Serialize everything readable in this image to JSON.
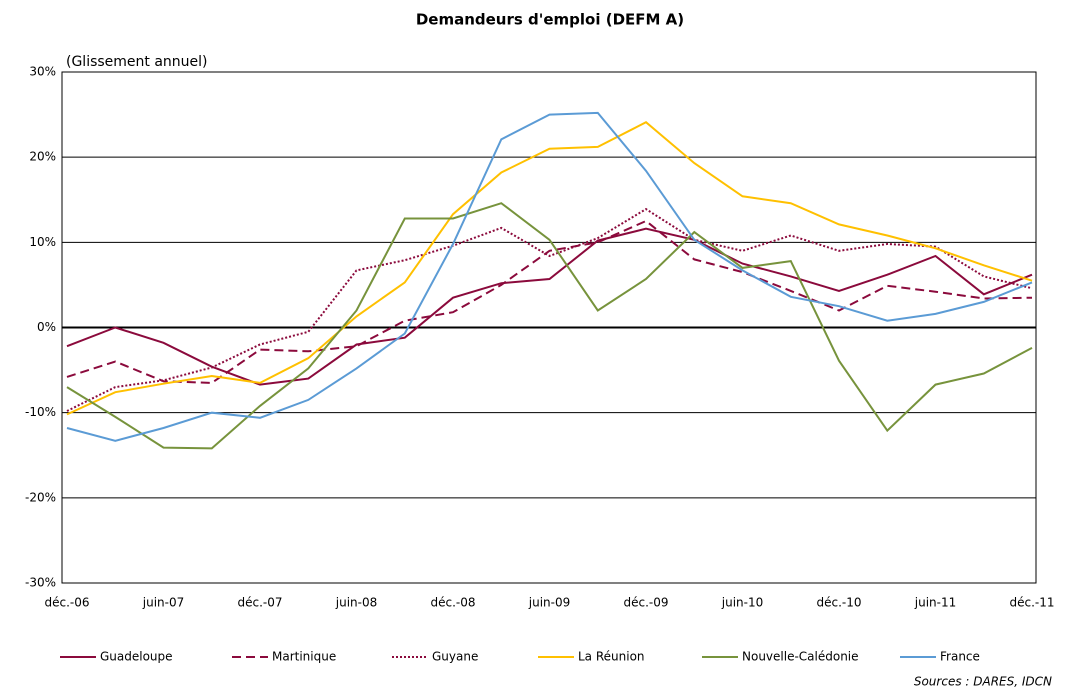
{
  "chart_data": {
    "type": "line",
    "title": "Demandeurs d'emploi (DEFM A)",
    "y_label": "(Glissement annuel)",
    "source": "Sources : DARES, IDCN",
    "categories": [
      "déc.-06",
      null,
      "juin-07",
      null,
      "déc.-07",
      null,
      "juin-08",
      null,
      "déc.-08",
      null,
      "juin-09",
      null,
      "déc.-09",
      null,
      "juin-10",
      null,
      "déc.-10",
      null,
      "juin-11",
      null,
      "déc.-11"
    ],
    "ylim": [
      -30,
      30
    ],
    "yticks": [
      {
        "value": -30,
        "label": "-30%"
      },
      {
        "value": -20,
        "label": "-20%"
      },
      {
        "value": -10,
        "label": "-10%"
      },
      {
        "value": 0,
        "label": "0%"
      },
      {
        "value": 10,
        "label": "10%"
      },
      {
        "value": 20,
        "label": "20%"
      },
      {
        "value": 30,
        "label": "30%"
      }
    ],
    "grid": true,
    "legend": "bottom",
    "series": [
      {
        "name": "Guadeloupe",
        "color": "#8b0a3c",
        "dash": "solid",
        "values": [
          -2.2,
          0,
          -1.8,
          -4.6,
          -6.7,
          -6.0,
          -2.0,
          -1.2,
          3.5,
          5.2,
          5.7,
          10.2,
          11.6,
          10.3,
          7.5,
          6.0,
          4.3,
          6.2,
          8.4,
          3.9,
          6.2
        ]
      },
      {
        "name": "Martinique",
        "color": "#8b0a3c",
        "dash": "dashed",
        "values": [
          -5.8,
          -4.0,
          -6.3,
          -6.5,
          -2.6,
          -2.8,
          -2.2,
          0.8,
          1.8,
          5.0,
          9.0,
          10.0,
          12.5,
          8.0,
          6.5,
          4.3,
          2.0,
          4.9,
          4.2,
          3.4,
          3.5
        ]
      },
      {
        "name": "Guyane",
        "color": "#8b0a3c",
        "dash": "dotted",
        "values": [
          -9.8,
          -7.0,
          -6.2,
          -4.7,
          -2.0,
          -0.5,
          6.7,
          7.9,
          9.6,
          11.7,
          8.4,
          10.5,
          13.9,
          10.3,
          9.0,
          10.8,
          9.0,
          9.8,
          9.5,
          6.0,
          4.6
        ]
      },
      {
        "name": "La Réunion",
        "color": "#ffc000",
        "dash": "solid",
        "values": [
          -10.2,
          -7.6,
          -6.6,
          -5.7,
          -6.5,
          -3.6,
          1.3,
          5.3,
          13.3,
          18.2,
          21.0,
          21.2,
          24.1,
          19.3,
          15.4,
          14.6,
          12.1,
          10.8,
          9.3,
          7.3,
          5.5
        ]
      },
      {
        "name": "Nouvelle-Calédonie",
        "color": "#77933c",
        "dash": "solid",
        "values": [
          -7.0,
          -10.5,
          -14.1,
          -14.2,
          -9.2,
          -4.8,
          2.0,
          12.8,
          12.8,
          14.6,
          10.3,
          2.0,
          5.7,
          11.2,
          7.0,
          7.8,
          -3.9,
          -12.1,
          -6.7,
          -5.4,
          -2.4
        ]
      },
      {
        "name": "France",
        "color": "#5b9bd5",
        "dash": "solid",
        "values": [
          -11.8,
          -13.3,
          -11.8,
          -10.0,
          -10.6,
          -8.5,
          -4.8,
          -0.7,
          9.8,
          22.1,
          25.0,
          25.2,
          18.4,
          10.3,
          6.7,
          3.6,
          2.5,
          0.8,
          1.6,
          3.0,
          5.3
        ]
      }
    ]
  }
}
